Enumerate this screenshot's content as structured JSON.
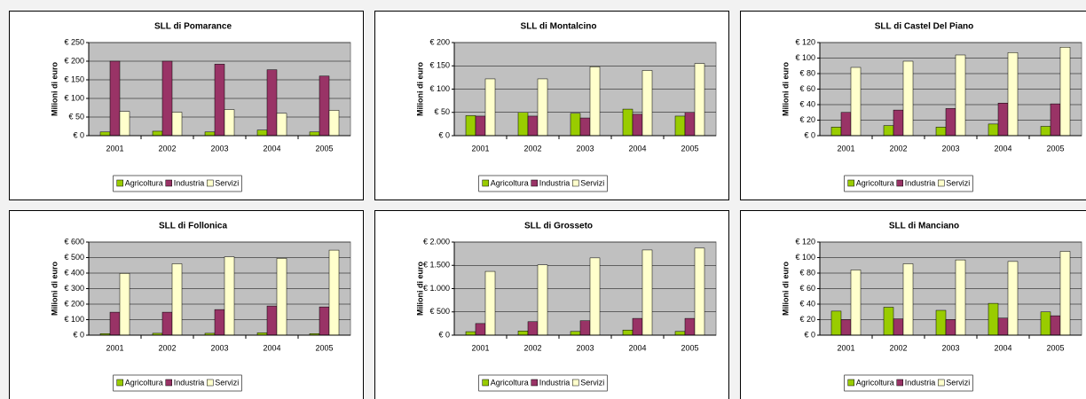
{
  "chart_data": [
    {
      "type": "bar",
      "title": "SLL di Pomarance",
      "y_label": "Milioni di euro",
      "categories": [
        "2001",
        "2002",
        "2003",
        "2004",
        "2005"
      ],
      "series": [
        {
          "name": "Agricoltura",
          "color": "#99cc00",
          "values": [
            10,
            12,
            10,
            15,
            10
          ]
        },
        {
          "name": "Industria",
          "color": "#993366",
          "values": [
            200,
            200,
            192,
            177,
            160
          ]
        },
        {
          "name": "Servizi",
          "color": "#ffffcc",
          "values": [
            65,
            63,
            70,
            60,
            68
          ]
        }
      ],
      "ylim": [
        0,
        250
      ],
      "yticks": [
        {
          "value": 0,
          "label": "€ 0"
        },
        {
          "value": 50,
          "label": "€ 50"
        },
        {
          "value": 100,
          "label": "€ 100"
        },
        {
          "value": 150,
          "label": "€ 150"
        },
        {
          "value": 200,
          "label": "€ 200"
        },
        {
          "value": 250,
          "label": "€ 250"
        }
      ],
      "grid": true
    },
    {
      "type": "bar",
      "title": "SLL di Montalcino",
      "y_label": "Milioni di euro",
      "categories": [
        "2001",
        "2002",
        "2003",
        "2004",
        "2005"
      ],
      "series": [
        {
          "name": "Agricoltura",
          "color": "#99cc00",
          "values": [
            43,
            50,
            48,
            57,
            42
          ]
        },
        {
          "name": "Industria",
          "color": "#993366",
          "values": [
            42,
            42,
            38,
            46,
            50
          ]
        },
        {
          "name": "Servizi",
          "color": "#ffffcc",
          "values": [
            122,
            122,
            148,
            140,
            155
          ]
        }
      ],
      "ylim": [
        0,
        200
      ],
      "yticks": [
        {
          "value": 0,
          "label": "€ 0"
        },
        {
          "value": 50,
          "label": "€ 50"
        },
        {
          "value": 100,
          "label": "€ 100"
        },
        {
          "value": 150,
          "label": "€ 150"
        },
        {
          "value": 200,
          "label": "€ 200"
        }
      ],
      "grid": true
    },
    {
      "type": "bar",
      "title": "SLL di Castel Del Piano",
      "y_label": "Milioni di euro",
      "categories": [
        "2001",
        "2002",
        "2003",
        "2004",
        "2005"
      ],
      "series": [
        {
          "name": "Agricoltura",
          "color": "#99cc00",
          "values": [
            11,
            13,
            11,
            15,
            12
          ]
        },
        {
          "name": "Industria",
          "color": "#993366",
          "values": [
            30,
            33,
            35,
            42,
            41
          ]
        },
        {
          "name": "Servizi",
          "color": "#ffffcc",
          "values": [
            88,
            96,
            104,
            107,
            114
          ]
        }
      ],
      "ylim": [
        0,
        120
      ],
      "yticks": [
        {
          "value": 0,
          "label": "€ 0"
        },
        {
          "value": 20,
          "label": "€ 20"
        },
        {
          "value": 40,
          "label": "€ 40"
        },
        {
          "value": 60,
          "label": "€ 60"
        },
        {
          "value": 80,
          "label": "€ 80"
        },
        {
          "value": 100,
          "label": "€ 100"
        },
        {
          "value": 120,
          "label": "€ 120"
        }
      ],
      "grid": true
    },
    {
      "type": "bar",
      "title": "SLL di Follonica",
      "y_label": "Milioni di euro",
      "categories": [
        "2001",
        "2002",
        "2003",
        "2004",
        "2005"
      ],
      "series": [
        {
          "name": "Agricoltura",
          "color": "#99cc00",
          "values": [
            10,
            12,
            12,
            15,
            10
          ]
        },
        {
          "name": "Industria",
          "color": "#993366",
          "values": [
            148,
            148,
            165,
            188,
            182
          ]
        },
        {
          "name": "Servizi",
          "color": "#ffffcc",
          "values": [
            398,
            460,
            505,
            495,
            548
          ]
        }
      ],
      "ylim": [
        0,
        600
      ],
      "yticks": [
        {
          "value": 0,
          "label": "€ 0"
        },
        {
          "value": 100,
          "label": "€ 100"
        },
        {
          "value": 200,
          "label": "€ 200"
        },
        {
          "value": 300,
          "label": "€ 300"
        },
        {
          "value": 400,
          "label": "€ 400"
        },
        {
          "value": 500,
          "label": "€ 500"
        },
        {
          "value": 600,
          "label": "€ 600"
        }
      ],
      "grid": true
    },
    {
      "type": "bar",
      "title": "SLL di Grosseto",
      "y_label": "Milioni di euro",
      "categories": [
        "2001",
        "2002",
        "2003",
        "2004",
        "2005"
      ],
      "series": [
        {
          "name": "Agricoltura",
          "color": "#99cc00",
          "values": [
            75,
            90,
            80,
            110,
            80
          ]
        },
        {
          "name": "Industria",
          "color": "#993366",
          "values": [
            250,
            290,
            310,
            360,
            360
          ]
        },
        {
          "name": "Servizi",
          "color": "#ffffcc",
          "values": [
            1370,
            1510,
            1660,
            1830,
            1870
          ]
        }
      ],
      "ylim": [
        0,
        2000
      ],
      "yticks": [
        {
          "value": 0,
          "label": "€ 0"
        },
        {
          "value": 500,
          "label": "€ 500"
        },
        {
          "value": 1000,
          "label": "€ 1.000"
        },
        {
          "value": 1500,
          "label": "€ 1.500"
        },
        {
          "value": 2000,
          "label": "€ 2.000"
        }
      ],
      "grid": true
    },
    {
      "type": "bar",
      "title": "SLL di Manciano",
      "y_label": "Milioni di euro",
      "categories": [
        "2001",
        "2002",
        "2003",
        "2004",
        "2005"
      ],
      "series": [
        {
          "name": "Agricoltura",
          "color": "#99cc00",
          "values": [
            31,
            36,
            32,
            41,
            30
          ]
        },
        {
          "name": "Industria",
          "color": "#993366",
          "values": [
            20,
            21,
            20,
            22,
            25
          ]
        },
        {
          "name": "Servizi",
          "color": "#ffffcc",
          "values": [
            84,
            92,
            97,
            95,
            108
          ]
        }
      ],
      "ylim": [
        0,
        120
      ],
      "yticks": [
        {
          "value": 0,
          "label": "€ 0"
        },
        {
          "value": 20,
          "label": "€ 20"
        },
        {
          "value": 40,
          "label": "€ 40"
        },
        {
          "value": 60,
          "label": "€ 60"
        },
        {
          "value": 80,
          "label": "€ 80"
        },
        {
          "value": 100,
          "label": "€ 100"
        },
        {
          "value": 120,
          "label": "€ 120"
        }
      ],
      "grid": true
    }
  ]
}
